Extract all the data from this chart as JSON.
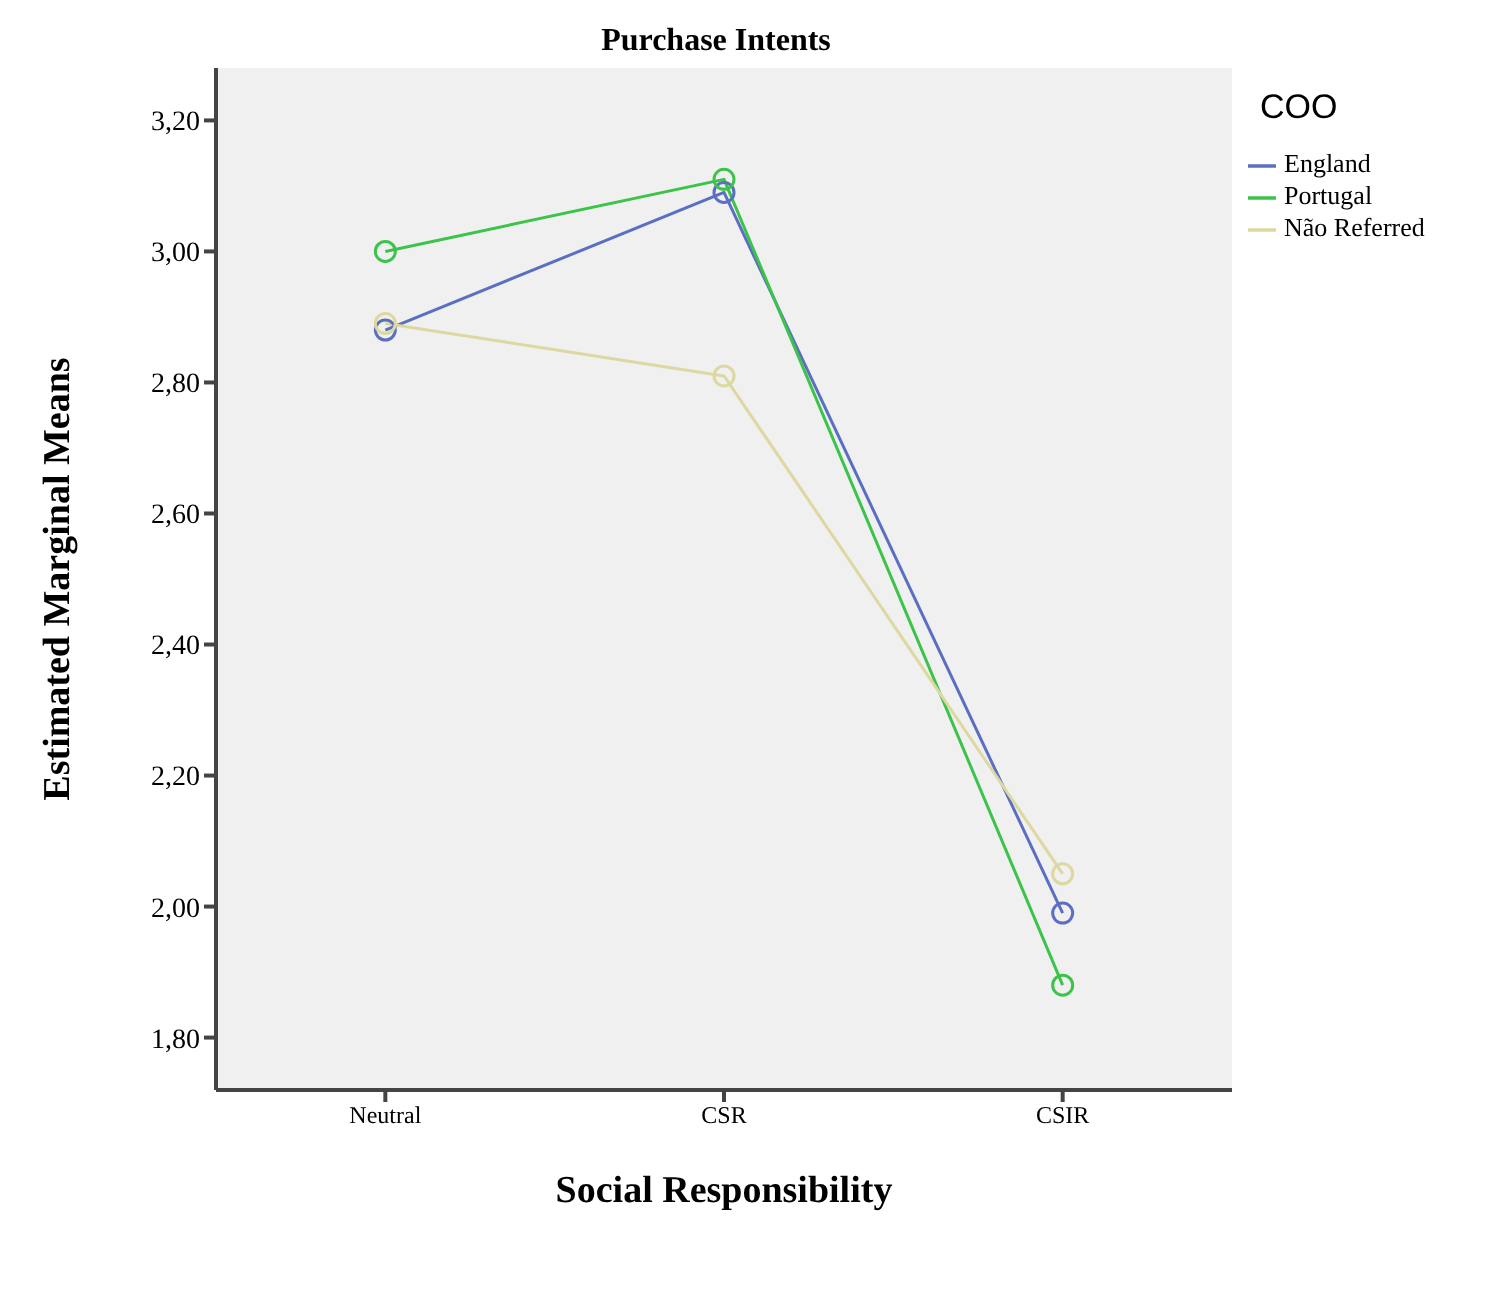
{
  "chart_data": {
    "type": "line",
    "title": "Purchase Intents",
    "xlabel": "Social Responsibility",
    "ylabel": "Estimated Marginal Means",
    "legend_title": "COO",
    "categories": [
      "Neutral",
      "CSR",
      "CSIR"
    ],
    "series": [
      {
        "name": "England",
        "color": "#5b6fc2",
        "values": [
          2.88,
          3.09,
          1.99
        ]
      },
      {
        "name": "Portugal",
        "color": "#3cc34a",
        "values": [
          3.0,
          3.11,
          1.88
        ]
      },
      {
        "name": "Não Referred",
        "color": "#ddd8a0",
        "values": [
          2.89,
          2.81,
          2.05
        ]
      }
    ],
    "ylim": [
      1.72,
      3.28
    ],
    "yticks": [
      {
        "value": 1.8,
        "label": "1,80"
      },
      {
        "value": 2.0,
        "label": "2,00"
      },
      {
        "value": 2.2,
        "label": "2,20"
      },
      {
        "value": 2.4,
        "label": "2,40"
      },
      {
        "value": 2.6,
        "label": "2,60"
      },
      {
        "value": 2.8,
        "label": "2,80"
      },
      {
        "value": 3.0,
        "label": "3,00"
      },
      {
        "value": 3.2,
        "label": "3,20"
      }
    ],
    "grid": false,
    "legend": "top right",
    "marker": "circle",
    "line_style": "solid"
  }
}
